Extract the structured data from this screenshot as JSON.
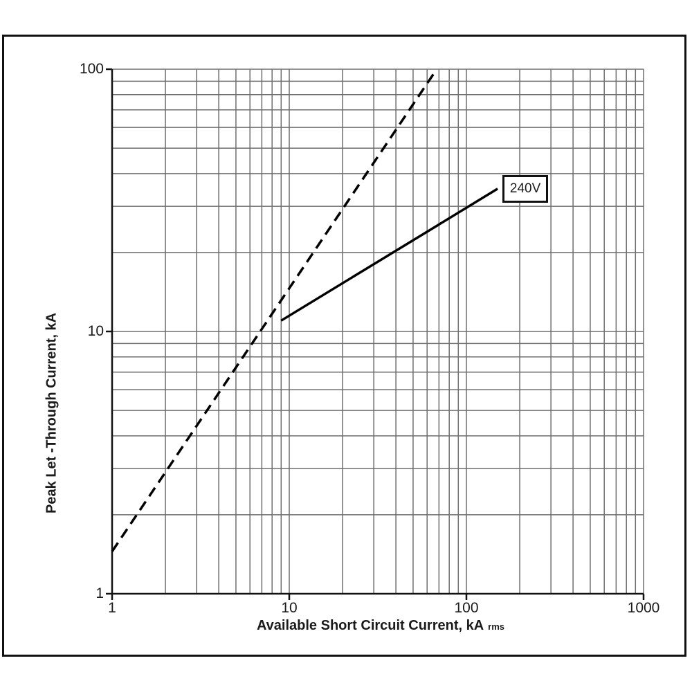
{
  "colors": {
    "background": "#ffffff",
    "frame": "#111111",
    "grid": "#6e6e6e",
    "axis": "#111111",
    "line": "#000000",
    "text": "#1a1a1a"
  },
  "chart_data": {
    "type": "line",
    "title": "",
    "x_axis": {
      "label": "Available Short Circuit Current, kA",
      "label_suffix": "rms",
      "scale": "log",
      "min": 1,
      "max": 1000,
      "ticks": [
        1,
        10,
        100,
        1000
      ]
    },
    "y_axis": {
      "label": "Peak Let -Through Current, kA",
      "scale": "log",
      "min": 1,
      "max": 100,
      "ticks": [
        1,
        10,
        100
      ]
    },
    "grid": {
      "minor": true,
      "major": true
    },
    "legend": "none",
    "series": [
      {
        "id": "prospective-peak-dashed",
        "style": "dashed",
        "points": [
          [
            1,
            1.45
          ],
          [
            68,
            100
          ]
        ]
      },
      {
        "id": "240v-let-through",
        "style": "solid",
        "label": "240V",
        "points": [
          [
            9,
            11
          ],
          [
            150,
            35
          ]
        ]
      }
    ],
    "annotation": {
      "label": "240V",
      "x": 215,
      "y": 35
    }
  }
}
